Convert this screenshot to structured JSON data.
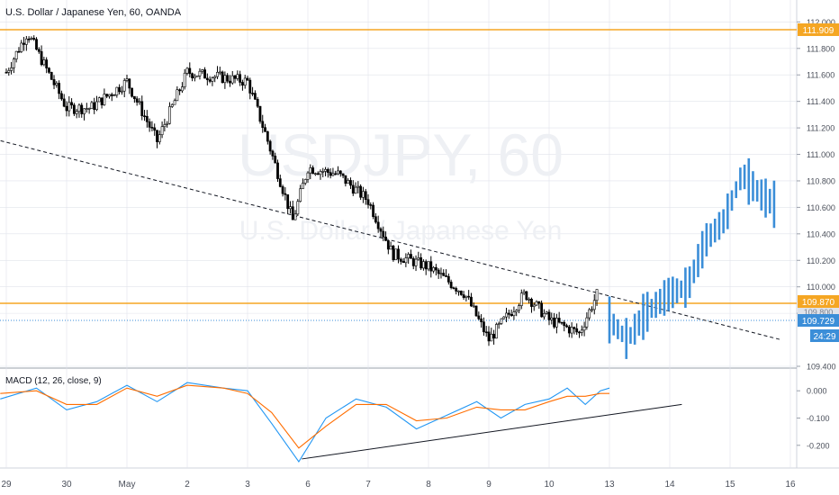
{
  "header": {
    "title": "U.S. Dollar / Japanese Yen, 60, OANDA"
  },
  "watermark": {
    "symbol": "USDJPY, 60",
    "name": "U.S. Dollar / Japanese Yen"
  },
  "price_badges": {
    "resistance": "111.909",
    "support": "109.870",
    "current": "109.729",
    "countdown": "24:29",
    "hidden": "109.800"
  },
  "colors": {
    "up": "#000000",
    "down": "#000000",
    "projection": "#3b8ed8",
    "level": "#f5a623",
    "macd": "#2196f3",
    "signal": "#ff6d00",
    "current_line": "#3b8ed8",
    "grid": "#e0e3eb"
  },
  "chart_data": [
    {
      "type": "candlestick",
      "title": "",
      "y_ticks": [
        "112.000",
        "111.800",
        "111.600",
        "111.400",
        "111.200",
        "111.000",
        "110.800",
        "110.600",
        "110.400",
        "110.200",
        "110.000",
        "109.800",
        "109.400"
      ],
      "ylim": [
        109.4,
        112.05
      ],
      "x_ticks": [
        "29",
        "30",
        "May",
        "2",
        "3",
        "6",
        "7",
        "8",
        "9",
        "10",
        "13",
        "14",
        "15",
        "16"
      ],
      "horizontal_levels": [
        111.909,
        109.87
      ],
      "current_price": 109.729,
      "trendline": [
        {
          "day_index": -0.5,
          "price": 111.15
        },
        {
          "day_index": 12.85,
          "price": 109.6
        }
      ],
      "ohlc_path": [
        {
          "day_index": 0.0,
          "price": 111.62
        },
        {
          "day_index": 0.35,
          "price": 111.92
        },
        {
          "day_index": 1.0,
          "price": 111.35
        },
        {
          "day_index": 1.4,
          "price": 111.35
        },
        {
          "day_index": 2.0,
          "price": 111.55
        },
        {
          "day_index": 2.5,
          "price": 111.1
        },
        {
          "day_index": 3.0,
          "price": 111.62
        },
        {
          "day_index": 4.0,
          "price": 111.55
        },
        {
          "day_index": 4.3,
          "price": 111.15
        },
        {
          "day_index": 4.75,
          "price": 110.5
        },
        {
          "day_index": 5.0,
          "price": 110.9
        },
        {
          "day_index": 5.5,
          "price": 110.85
        },
        {
          "day_index": 6.0,
          "price": 110.65
        },
        {
          "day_index": 6.4,
          "price": 110.25
        },
        {
          "day_index": 7.0,
          "price": 110.15
        },
        {
          "day_index": 7.6,
          "price": 109.95
        },
        {
          "day_index": 8.0,
          "price": 109.6
        },
        {
          "day_index": 8.6,
          "price": 109.95
        },
        {
          "day_index": 9.0,
          "price": 109.75
        },
        {
          "day_index": 9.5,
          "price": 109.65
        },
        {
          "day_index": 9.8,
          "price": 109.95
        }
      ],
      "projection_path": [
        {
          "day_index": 10.0,
          "price": 109.75
        },
        {
          "day_index": 10.3,
          "price": 109.6
        },
        {
          "day_index": 10.6,
          "price": 109.8
        },
        {
          "day_index": 11.0,
          "price": 109.95
        },
        {
          "day_index": 11.3,
          "price": 110.0
        },
        {
          "day_index": 11.6,
          "price": 110.35
        },
        {
          "day_index": 11.9,
          "price": 110.5
        },
        {
          "day_index": 12.2,
          "price": 110.85
        },
        {
          "day_index": 12.5,
          "price": 110.7
        },
        {
          "day_index": 12.8,
          "price": 110.6
        }
      ]
    },
    {
      "type": "line",
      "title": "MACD (12, 26, close, 9)",
      "y_ticks": [
        "0.000",
        "-0.100",
        "-0.200"
      ],
      "ylim": [
        -0.27,
        0.07
      ],
      "series": [
        {
          "name": "MACD",
          "points": [
            [
              -0.1,
              -0.03
            ],
            [
              0.5,
              0.01
            ],
            [
              1.0,
              -0.07
            ],
            [
              1.5,
              -0.04
            ],
            [
              2.0,
              0.02
            ],
            [
              2.5,
              -0.04
            ],
            [
              3.0,
              0.03
            ],
            [
              3.6,
              0.01
            ],
            [
              4.0,
              0.0
            ],
            [
              4.4,
              -0.12
            ],
            [
              4.85,
              -0.26
            ],
            [
              5.3,
              -0.1
            ],
            [
              5.8,
              -0.03
            ],
            [
              6.3,
              -0.06
            ],
            [
              6.8,
              -0.14
            ],
            [
              7.3,
              -0.09
            ],
            [
              7.8,
              -0.04
            ],
            [
              8.2,
              -0.1
            ],
            [
              8.6,
              -0.05
            ],
            [
              9.0,
              -0.03
            ],
            [
              9.3,
              0.01
            ],
            [
              9.6,
              -0.05
            ],
            [
              9.85,
              0.0
            ],
            [
              10.0,
              0.01
            ]
          ]
        },
        {
          "name": "Signal",
          "points": [
            [
              -0.1,
              -0.01
            ],
            [
              0.5,
              0.0
            ],
            [
              1.0,
              -0.05
            ],
            [
              1.5,
              -0.05
            ],
            [
              2.0,
              0.01
            ],
            [
              2.5,
              -0.02
            ],
            [
              3.0,
              0.02
            ],
            [
              3.6,
              0.01
            ],
            [
              4.0,
              -0.01
            ],
            [
              4.4,
              -0.08
            ],
            [
              4.85,
              -0.21
            ],
            [
              5.3,
              -0.13
            ],
            [
              5.8,
              -0.05
            ],
            [
              6.3,
              -0.05
            ],
            [
              6.8,
              -0.11
            ],
            [
              7.3,
              -0.1
            ],
            [
              7.8,
              -0.06
            ],
            [
              8.2,
              -0.07
            ],
            [
              8.6,
              -0.07
            ],
            [
              9.0,
              -0.04
            ],
            [
              9.3,
              -0.02
            ],
            [
              9.6,
              -0.02
            ],
            [
              9.85,
              -0.01
            ],
            [
              10.0,
              -0.01
            ]
          ]
        }
      ],
      "trendline": [
        {
          "day_index": 4.9,
          "value": -0.25
        },
        {
          "day_index": 11.2,
          "value": -0.05
        }
      ]
    }
  ]
}
